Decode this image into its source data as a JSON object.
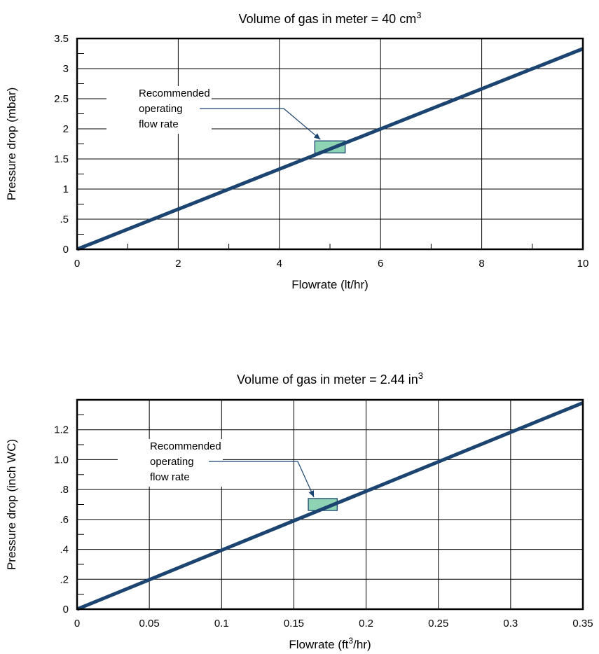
{
  "colors": {
    "line": "#1c4470",
    "box_fill": "#8fd3b5",
    "box_stroke": "#1c4470",
    "grid": "#000000"
  },
  "chart_data": [
    {
      "type": "line",
      "title": "Volume of gas in meter = 40 cm",
      "title_sup": "3",
      "xlabel": "Flowrate (lt/hr)",
      "xlabel_sup": "",
      "xlabel_tail": "",
      "ylabel": "Pressure drop (mbar)",
      "xlim": [
        0,
        10
      ],
      "ylim": [
        0,
        3.5
      ],
      "x_ticks": [
        0,
        2,
        4,
        6,
        8,
        10
      ],
      "x_tick_labels": [
        "0",
        "2",
        "4",
        "6",
        "8",
        "10"
      ],
      "y_ticks": [
        0,
        0.5,
        1,
        1.5,
        2,
        2.5,
        3,
        3.5
      ],
      "y_tick_labels": [
        "0",
        ".5",
        "1",
        "1.5",
        "2",
        "2.5",
        "3",
        "3.5"
      ],
      "grid": true,
      "series": [
        {
          "x": [
            0,
            10
          ],
          "y": [
            0,
            3.33
          ]
        }
      ],
      "highlight": {
        "x": [
          4.7,
          5.3
        ],
        "y": [
          1.6,
          1.8
        ]
      },
      "annotation": [
        "Recommended",
        "operating",
        "flow rate"
      ]
    },
    {
      "type": "line",
      "title": "Volume of gas in meter = 2.44 in",
      "title_sup": "3",
      "xlabel": "Flowrate (ft",
      "xlabel_sup": "3",
      "xlabel_tail": "/hr)",
      "ylabel": "Pressure drop (inch WC)",
      "xlim": [
        0,
        0.35
      ],
      "ylim": [
        0,
        1.4
      ],
      "x_ticks": [
        0,
        0.05,
        0.1,
        0.15,
        0.2,
        0.25,
        0.3,
        0.35
      ],
      "x_tick_labels": [
        "0",
        "0.05",
        "0.1",
        "0.15",
        "0.2",
        "0.25",
        "0.3",
        "0.35"
      ],
      "y_ticks": [
        0,
        0.2,
        0.4,
        0.6,
        0.8,
        1.0,
        1.2
      ],
      "y_tick_labels": [
        "0",
        ".2",
        ".4",
        ".6",
        ".8",
        "1.0",
        "1.2"
      ],
      "grid": true,
      "series": [
        {
          "x": [
            0,
            0.35
          ],
          "y": [
            0,
            1.38
          ]
        }
      ],
      "highlight": {
        "x": [
          0.16,
          0.18
        ],
        "y": [
          0.66,
          0.74
        ]
      },
      "annotation": [
        "Recommended",
        "operating",
        "flow rate"
      ]
    }
  ]
}
